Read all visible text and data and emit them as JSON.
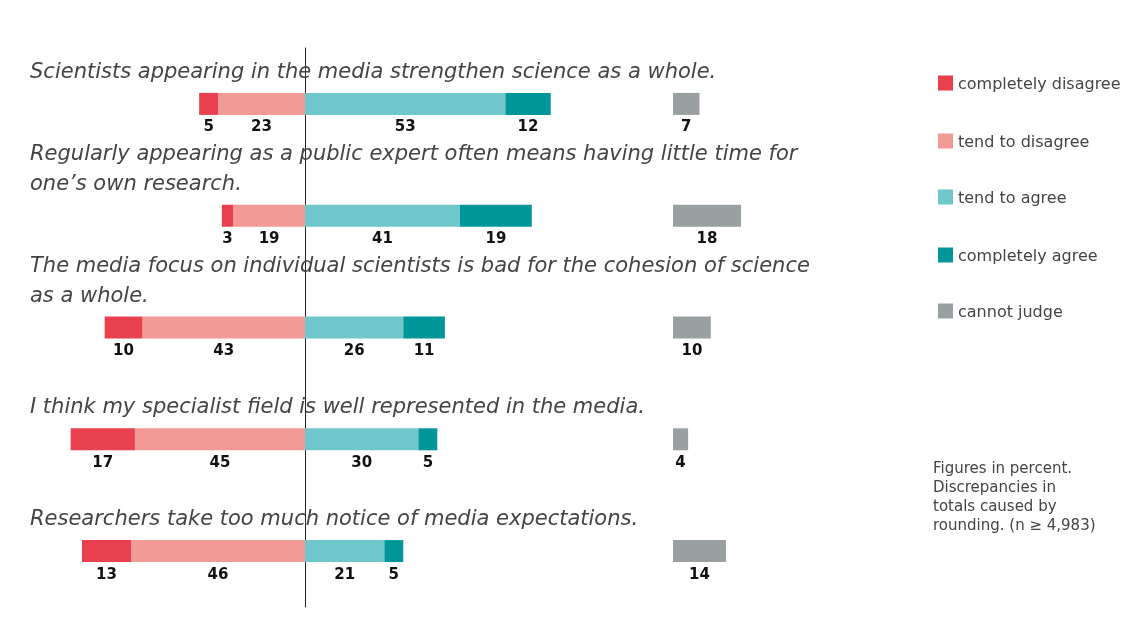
{
  "chart_data": [
    {
      "type": "bar",
      "orientation": "horizontal",
      "stacked": true,
      "categories": [
        "Scientists appearing in the media strengthen science as a whole.",
        "Regularly appearing as a public expert often means having little time for one’s own research.",
        "The media focus on individual scientists is bad for the cohesion of science as a whole.",
        "I think my specialist field is well represented in the media.",
        "Researchers take too much notice of media expectations."
      ],
      "series": [
        {
          "name": "tend to disagree",
          "color": "#f29a96",
          "values": [
            23,
            19,
            43,
            45,
            46
          ]
        },
        {
          "name": "completely disagree",
          "color": "#e8404e",
          "values": [
            5,
            3,
            10,
            17,
            13
          ]
        }
      ],
      "tick_labels": "y",
      "data_labels": true,
      "legend": "right",
      "annotations": [
        "Figures in percent. Discrepancies in totals caused by rounding. (n ≥ 4,983)"
      ]
    },
    {
      "type": "bar",
      "orientation": "horizontal",
      "stacked": true,
      "categories": [
        null,
        null,
        null,
        null,
        null
      ],
      "series": [
        {
          "name": "tend to agree",
          "color": "#6fc7cc",
          "values": [
            53,
            41,
            26,
            30,
            21
          ]
        },
        {
          "name": "completely agree",
          "color": "#00969a",
          "values": [
            12,
            19,
            11,
            5,
            5
          ]
        }
      ],
      "tick_labels": false,
      "data_labels": true,
      "legend": "right"
    },
    {
      "type": "bar",
      "orientation": "horizontal",
      "categories": [
        null,
        null,
        null,
        null,
        null
      ],
      "series": [
        {
          "name": "cannot judge",
          "color": "#9a9fa2",
          "values": [
            7,
            18,
            10,
            4,
            14
          ]
        }
      ],
      "tick_labels": false,
      "data_labels": true,
      "legend": "right"
    }
  ]
}
